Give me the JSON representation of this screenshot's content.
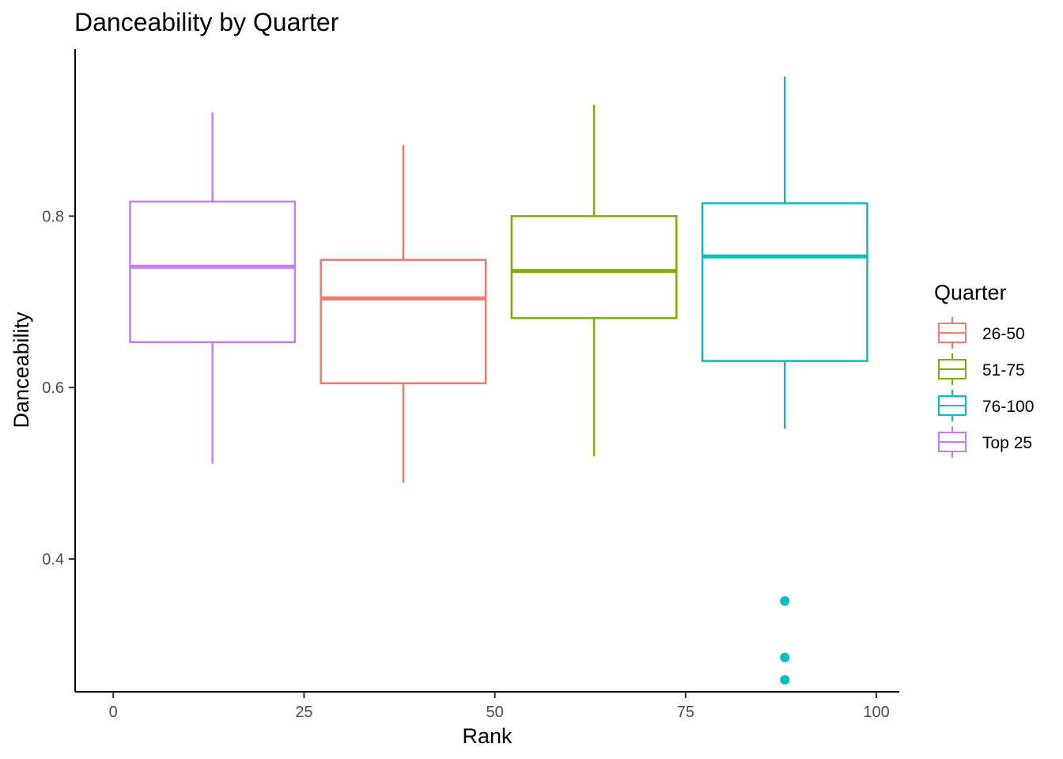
{
  "chart_data": {
    "type": "boxplot",
    "title": "Danceability by Quarter",
    "xlabel": "Rank",
    "ylabel": "Danceability",
    "xlim": [
      -5,
      103
    ],
    "ylim": [
      0.245,
      0.995
    ],
    "x_ticks": [
      0,
      25,
      50,
      75,
      100
    ],
    "x_tick_labels": [
      "0",
      "25",
      "50",
      "75",
      "100"
    ],
    "y_ticks": [
      0.4,
      0.6,
      0.8
    ],
    "y_tick_labels": [
      "0.4",
      "0.6",
      "0.8"
    ],
    "grid": false,
    "legend": {
      "title": "Quarter",
      "position": "right",
      "items": [
        {
          "label": "26-50",
          "color": "#F8766D"
        },
        {
          "label": "51-75",
          "color": "#7CAE00"
        },
        {
          "label": "76-100",
          "color": "#00BFC4"
        },
        {
          "label": "Top 25",
          "color": "#C77CFF"
        }
      ]
    },
    "series": [
      {
        "name": "Top 25",
        "color": "#C77CFF",
        "x": 13,
        "x_range": [
          2.2,
          23.8
        ],
        "min": 0.511,
        "q1": 0.653,
        "median": 0.741,
        "q3": 0.817,
        "max": 0.921,
        "outliers": []
      },
      {
        "name": "26-50",
        "color": "#F8766D",
        "x": 38,
        "x_range": [
          27.2,
          48.8
        ],
        "min": 0.489,
        "q1": 0.605,
        "median": 0.704,
        "q3": 0.749,
        "max": 0.883,
        "outliers": []
      },
      {
        "name": "51-75",
        "color": "#7CAE00",
        "x": 63,
        "x_range": [
          52.2,
          73.8
        ],
        "min": 0.52,
        "q1": 0.681,
        "median": 0.736,
        "q3": 0.8,
        "max": 0.93,
        "outliers": []
      },
      {
        "name": "76-100",
        "color": "#00BFC4",
        "x": 88,
        "x_range": [
          77.2,
          98.8
        ],
        "min": 0.552,
        "q1": 0.631,
        "median": 0.753,
        "q3": 0.815,
        "max": 0.963,
        "outliers": [
          0.351,
          0.285,
          0.259
        ]
      }
    ]
  }
}
